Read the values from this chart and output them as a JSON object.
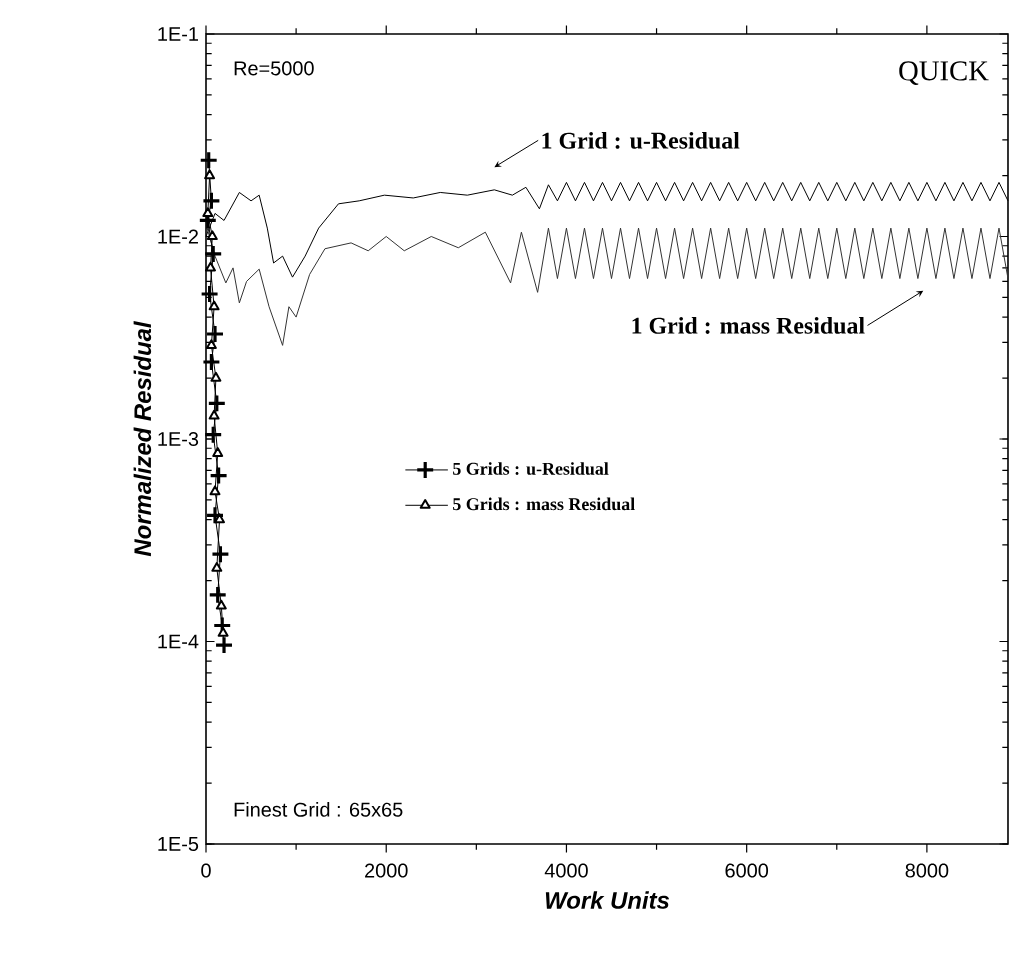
{
  "chart_data": {
    "type": "line",
    "xlabel": "Work Units",
    "ylabel": "Normalized Residual",
    "log": "y",
    "xlim": [
      0,
      8900
    ],
    "ylim": [
      1e-05,
      0.1
    ],
    "xticks": [
      0,
      2000,
      4000,
      6000,
      8000
    ],
    "yticks": [
      {
        "value": 1e-05,
        "label": "1E-5"
      },
      {
        "value": 0.0001,
        "label": "1E-4"
      },
      {
        "value": 0.001,
        "label": "1E-3"
      },
      {
        "value": 0.01,
        "label": "1E-2"
      },
      {
        "value": 0.1,
        "label": "1E-1"
      }
    ],
    "legend": "left",
    "series": [
      {
        "color": "#000000",
        "marker": "none",
        "x": [
          0,
          100,
          200,
          370,
          500,
          590,
          680,
          750,
          850,
          960,
          1100,
          1250,
          1470,
          1700,
          1980,
          2300,
          2600,
          2900,
          3200,
          3400,
          3550,
          3700,
          3800,
          3900,
          4000,
          4100,
          4200,
          4300,
          4400,
          4500,
          4600,
          4700,
          4800,
          4900,
          5000,
          5100,
          5200,
          5300,
          5400,
          5500,
          5600,
          5700,
          5800,
          5900,
          6000,
          6100,
          6200,
          6300,
          6400,
          6500,
          6600,
          6700,
          6800,
          6900,
          7000,
          7100,
          7200,
          7300,
          7400,
          7500,
          7600,
          7700,
          7800,
          7900,
          8000,
          8100,
          8200,
          8300,
          8400,
          8500,
          8600,
          8700,
          8800,
          8900
        ],
        "values": [
          0.01,
          0.013,
          0.012,
          0.0165,
          0.015,
          0.016,
          0.011,
          0.0074,
          0.008,
          0.0063,
          0.008,
          0.011,
          0.0145,
          0.015,
          0.016,
          0.0155,
          0.0165,
          0.016,
          0.017,
          0.016,
          0.0175,
          0.0137,
          0.018,
          0.015,
          0.0185,
          0.015,
          0.0185,
          0.015,
          0.0185,
          0.015,
          0.0185,
          0.015,
          0.0185,
          0.015,
          0.0185,
          0.015,
          0.0185,
          0.015,
          0.0185,
          0.015,
          0.0185,
          0.015,
          0.0185,
          0.015,
          0.0185,
          0.015,
          0.0185,
          0.015,
          0.0185,
          0.015,
          0.0185,
          0.015,
          0.0185,
          0.015,
          0.0185,
          0.015,
          0.0185,
          0.015,
          0.0185,
          0.015,
          0.0185,
          0.015,
          0.0185,
          0.015,
          0.0185,
          0.015,
          0.0185,
          0.015,
          0.0185,
          0.015,
          0.0185,
          0.015,
          0.0185,
          0.015
        ]
      },
      {
        "color": "#333333",
        "marker": "none",
        "x": [
          0,
          100,
          220,
          300,
          370,
          450,
          590,
          700,
          850,
          920,
          1000,
          1150,
          1320,
          1610,
          1800,
          2000,
          2200,
          2500,
          2800,
          3100,
          3380,
          3500,
          3680,
          3800,
          3900,
          4000,
          4100,
          4200,
          4300,
          4400,
          4500,
          4600,
          4700,
          4800,
          4900,
          5000,
          5100,
          5200,
          5300,
          5400,
          5500,
          5600,
          5700,
          5800,
          5900,
          6000,
          6100,
          6200,
          6300,
          6400,
          6500,
          6600,
          6700,
          6800,
          6900,
          7000,
          7100,
          7200,
          7300,
          7400,
          7500,
          7600,
          7700,
          7800,
          7900,
          8000,
          8100,
          8200,
          8300,
          8400,
          8500,
          8600,
          8700,
          8800,
          8900
        ],
        "values": [
          0.0115,
          0.008,
          0.0059,
          0.007,
          0.0047,
          0.006,
          0.0069,
          0.0045,
          0.0029,
          0.0045,
          0.004,
          0.0065,
          0.0087,
          0.0093,
          0.0085,
          0.01,
          0.0085,
          0.01,
          0.0088,
          0.0105,
          0.0059,
          0.0105,
          0.0053,
          0.011,
          0.0062,
          0.011,
          0.0062,
          0.011,
          0.0062,
          0.011,
          0.0062,
          0.011,
          0.0062,
          0.011,
          0.0062,
          0.011,
          0.0062,
          0.011,
          0.0062,
          0.011,
          0.0062,
          0.011,
          0.0062,
          0.011,
          0.0062,
          0.011,
          0.0062,
          0.011,
          0.0062,
          0.011,
          0.0062,
          0.011,
          0.0062,
          0.011,
          0.0062,
          0.011,
          0.0062,
          0.011,
          0.0062,
          0.011,
          0.0062,
          0.011,
          0.0062,
          0.011,
          0.0062,
          0.011,
          0.0062,
          0.011,
          0.0062,
          0.011,
          0.0062,
          0.011,
          0.0062,
          0.011,
          0.0062
        ]
      },
      {
        "name": "5 Grids : u-Residual",
        "color": "#000000",
        "marker": "cross",
        "x": [
          30,
          60,
          20,
          80,
          40,
          100,
          60,
          120,
          80,
          140,
          100,
          160,
          130,
          180,
          200
        ],
        "values": [
          0.0238,
          0.015,
          0.012,
          0.0082,
          0.0052,
          0.0033,
          0.0024,
          0.0015,
          0.00105,
          0.00066,
          0.00042,
          0.00027,
          0.00017,
          0.00012,
          9.6e-05
        ]
      },
      {
        "name": "5 Grids : mass Residual",
        "color": "#000000",
        "marker": "triangle",
        "x": [
          40,
          20,
          70,
          50,
          90,
          60,
          110,
          90,
          130,
          100,
          150,
          120,
          170,
          190
        ],
        "values": [
          0.02,
          0.013,
          0.01,
          0.007,
          0.0045,
          0.0029,
          0.002,
          0.0013,
          0.00085,
          0.00055,
          0.0004,
          0.00023,
          0.00015,
          0.00011
        ]
      }
    ],
    "annotations": [
      "Re=5000",
      "QUICK",
      "Finest Grid : 65x65",
      {
        "text": "1 Grid : u-Residual",
        "x": 3200,
        "y": 0.022
      },
      {
        "text": "1 Grid : mass Residual",
        "x": 7960,
        "y": 0.0054
      }
    ]
  }
}
